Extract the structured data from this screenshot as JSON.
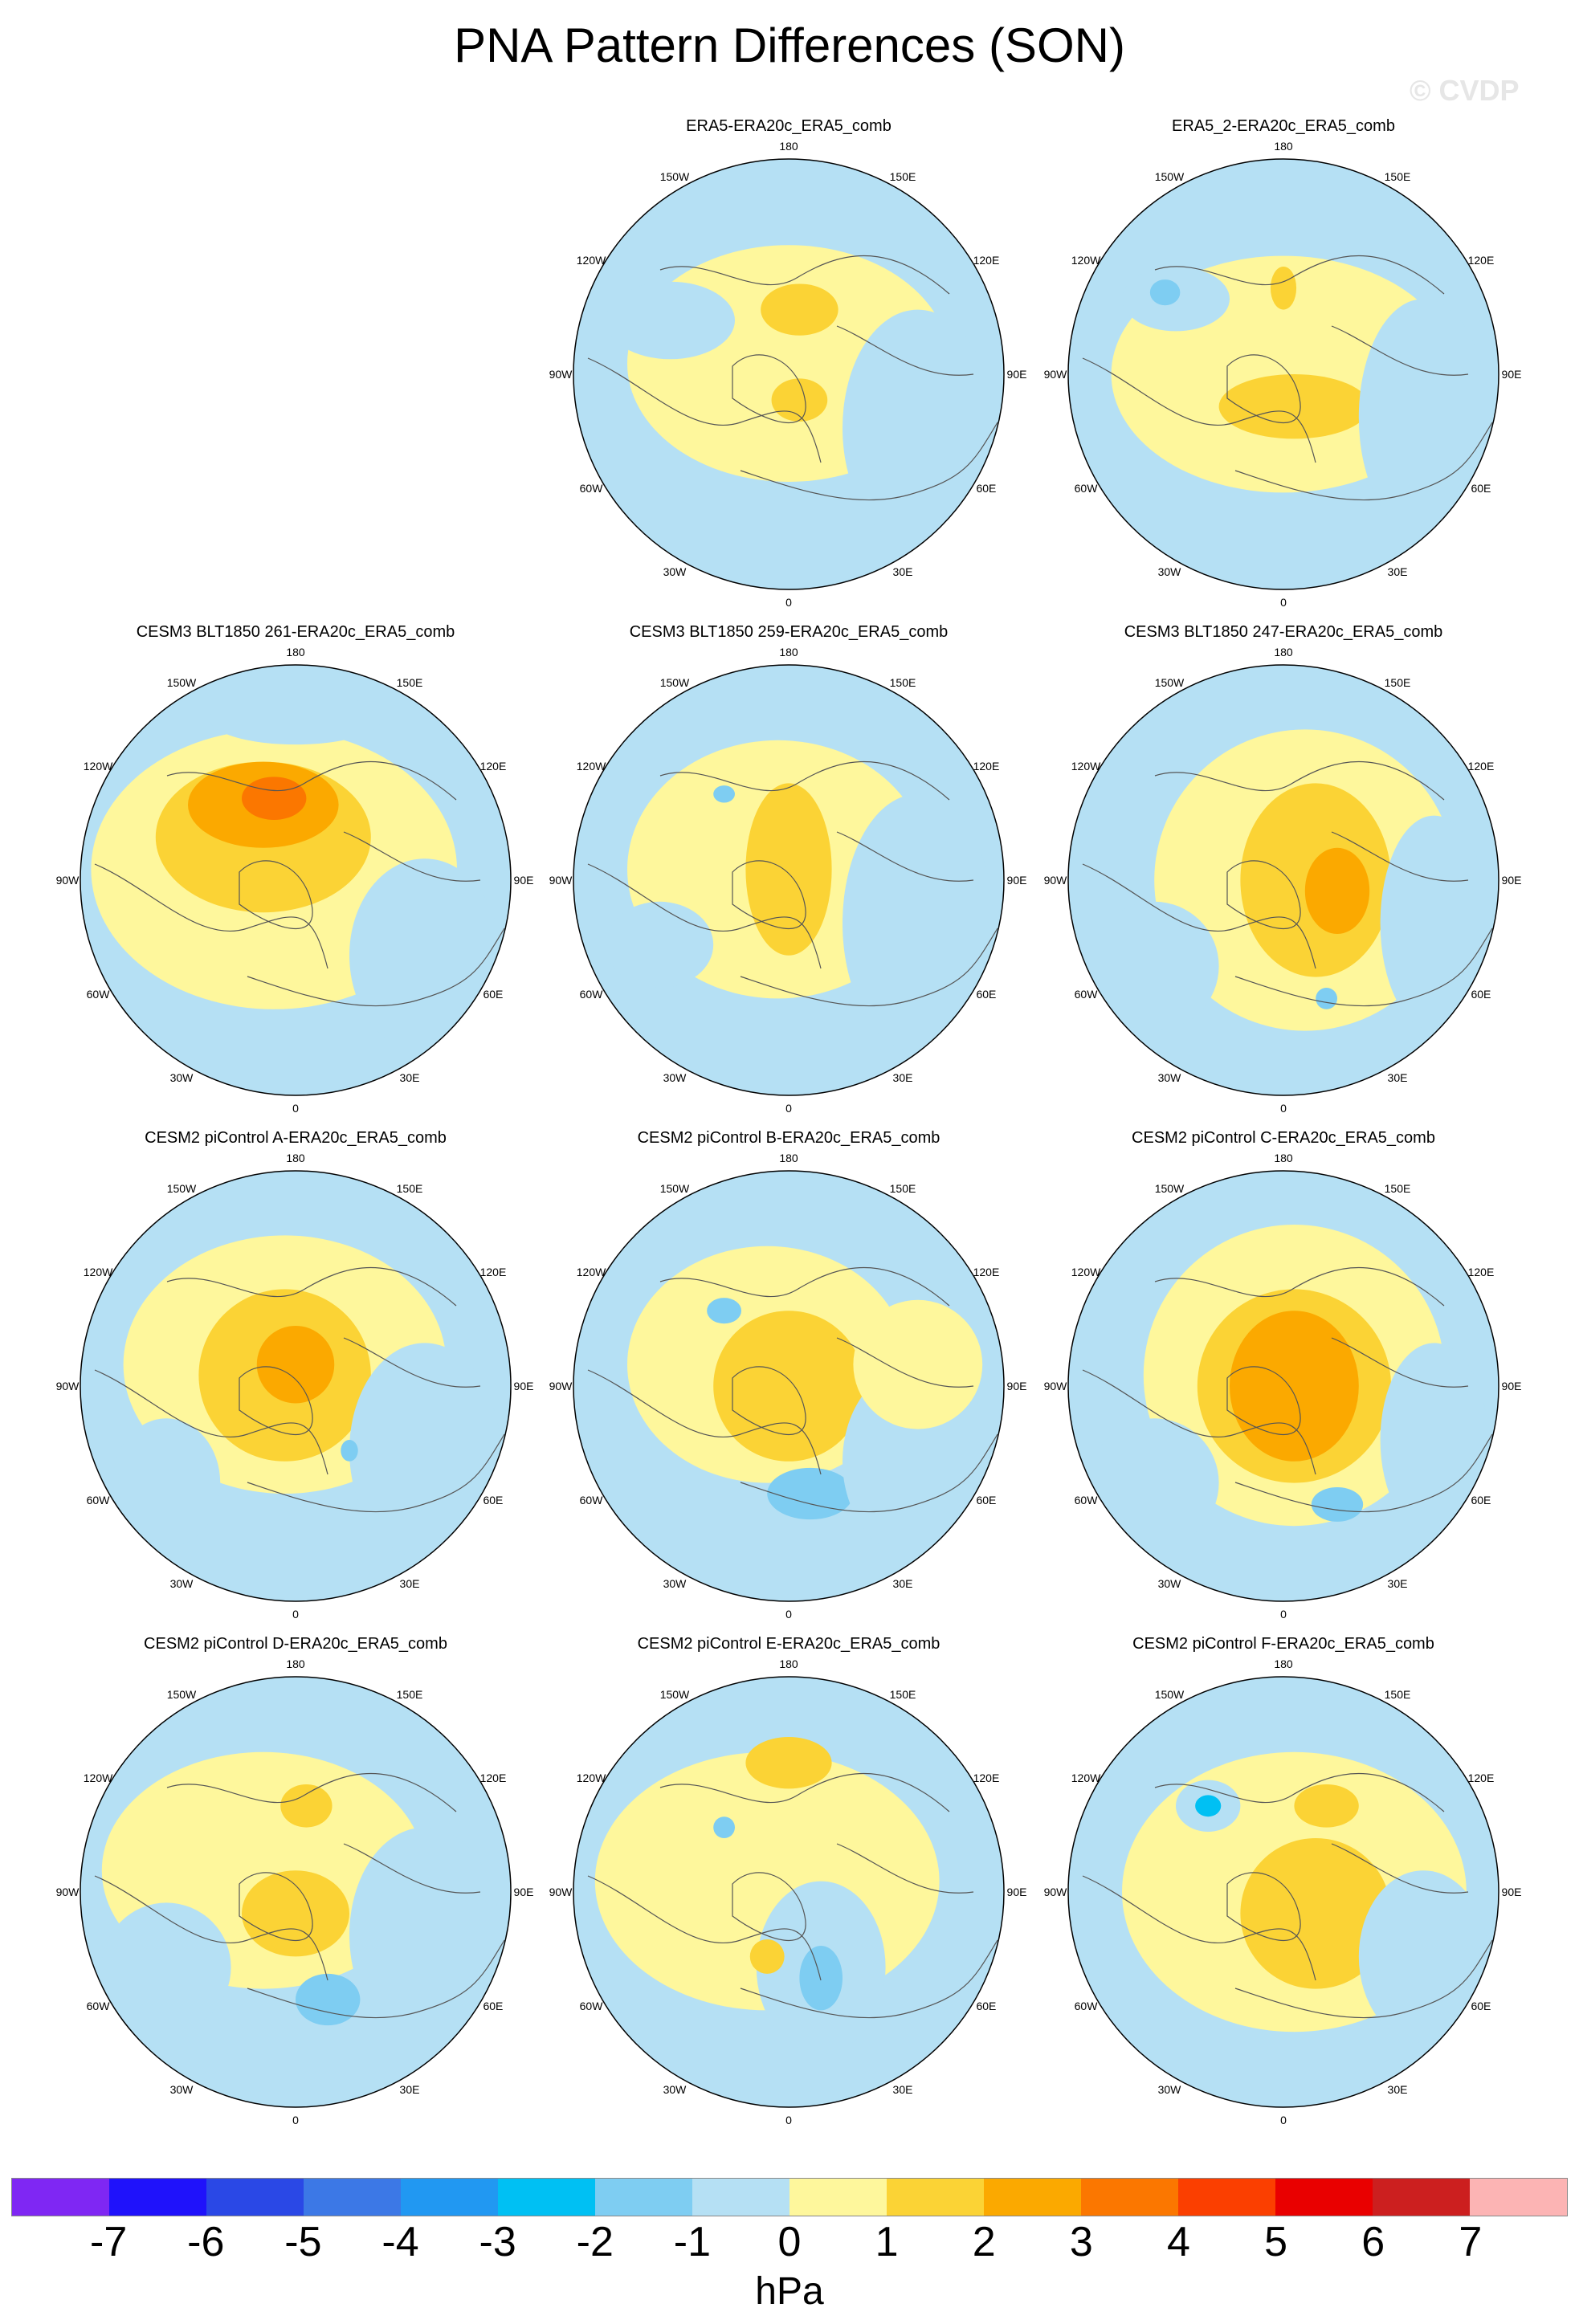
{
  "title": "PNA Pattern Differences (SON)",
  "watermark": "© CVDP",
  "units": "hPa",
  "colorbar": {
    "colors": [
      "#7f27f3",
      "#1f12fb",
      "#2a48e6",
      "#3c78e6",
      "#2198f2",
      "#00c0f3",
      "#7ecdf2",
      "#b5e0f4",
      "#fef79c",
      "#fbd335",
      "#fba900",
      "#fb7700",
      "#fb3f00",
      "#e90000",
      "#cc1f1f",
      "#fcb4b4"
    ],
    "tick_labels": [
      "-7",
      "-6",
      "-5",
      "-4",
      "-3",
      "-2",
      "-1",
      "0",
      "1",
      "2",
      "3",
      "4",
      "5",
      "6",
      "7"
    ]
  },
  "longitude_labels": [
    "180",
    "150E",
    "120E",
    "90E",
    "60E",
    "30E",
    "0",
    "30W",
    "60W",
    "90W",
    "120W",
    "150W"
  ],
  "panels": [
    {
      "title": "ERA5-ERA20c_ERA5_comb"
    },
    {
      "title": "ERA5_2-ERA20c_ERA5_comb"
    },
    {
      "title": "CESM3 BLT1850 261-ERA20c_ERA5_comb"
    },
    {
      "title": "CESM3 BLT1850 259-ERA20c_ERA5_comb"
    },
    {
      "title": "CESM3 BLT1850 247-ERA20c_ERA5_comb"
    },
    {
      "title": "CESM2 piControl A-ERA20c_ERA5_comb"
    },
    {
      "title": "CESM2 piControl B-ERA20c_ERA5_comb"
    },
    {
      "title": "CESM2 piControl C-ERA20c_ERA5_comb"
    },
    {
      "title": "CESM2 piControl D-ERA20c_ERA5_comb"
    },
    {
      "title": "CESM2 piControl E-ERA20c_ERA5_comb"
    },
    {
      "title": "CESM2 piControl F-ERA20c_ERA5_comb"
    }
  ]
}
